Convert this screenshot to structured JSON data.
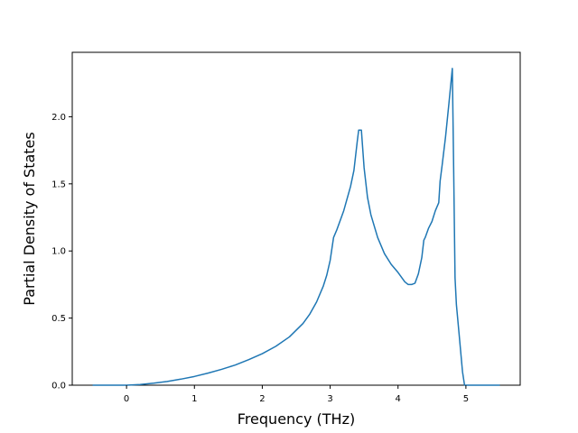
{
  "chart_data": {
    "type": "line",
    "title": "",
    "xlabel": "Frequency (THz)",
    "ylabel": "Partial Density of States",
    "xlim": [
      -0.8,
      5.8
    ],
    "ylim": [
      0.0,
      2.48
    ],
    "xticks": [
      0,
      1,
      2,
      3,
      4,
      5
    ],
    "xtick_labels": [
      "0",
      "1",
      "2",
      "3",
      "4",
      "5"
    ],
    "yticks": [
      0.0,
      0.5,
      1.0,
      1.5,
      2.0
    ],
    "ytick_labels": [
      "0.0",
      "0.5",
      "1.0",
      "1.5",
      "2.0"
    ],
    "grid": false,
    "legend": "none",
    "color": "#1f77b4",
    "series": [
      {
        "x": [
          -0.5,
          0.0,
          0.2,
          0.4,
          0.6,
          0.8,
          1.0,
          1.2,
          1.4,
          1.6,
          1.8,
          2.0,
          2.2,
          2.4,
          2.6,
          2.7,
          2.8,
          2.9,
          2.95,
          3.0,
          3.05,
          3.1,
          3.2,
          3.3,
          3.35,
          3.4,
          3.42,
          3.46,
          3.5,
          3.55,
          3.6,
          3.7,
          3.8,
          3.9,
          4.0,
          4.1,
          4.15,
          4.2,
          4.25,
          4.3,
          4.35,
          4.38,
          4.4,
          4.45,
          4.5,
          4.55,
          4.6,
          4.62,
          4.65,
          4.7,
          4.75,
          4.8,
          4.82,
          4.84,
          4.86,
          4.9,
          4.95,
          4.98,
          5.0,
          5.5
        ],
        "y": [
          0.0,
          0.0,
          0.005,
          0.015,
          0.028,
          0.045,
          0.065,
          0.09,
          0.118,
          0.15,
          0.19,
          0.235,
          0.29,
          0.36,
          0.46,
          0.53,
          0.62,
          0.74,
          0.82,
          0.93,
          1.1,
          1.16,
          1.3,
          1.48,
          1.6,
          1.82,
          1.9,
          1.9,
          1.62,
          1.4,
          1.27,
          1.1,
          0.98,
          0.9,
          0.84,
          0.77,
          0.75,
          0.75,
          0.76,
          0.83,
          0.95,
          1.08,
          1.1,
          1.17,
          1.22,
          1.3,
          1.36,
          1.52,
          1.64,
          1.85,
          2.1,
          2.36,
          1.6,
          0.8,
          0.6,
          0.38,
          0.1,
          0.0,
          0.0,
          0.0
        ]
      }
    ]
  }
}
